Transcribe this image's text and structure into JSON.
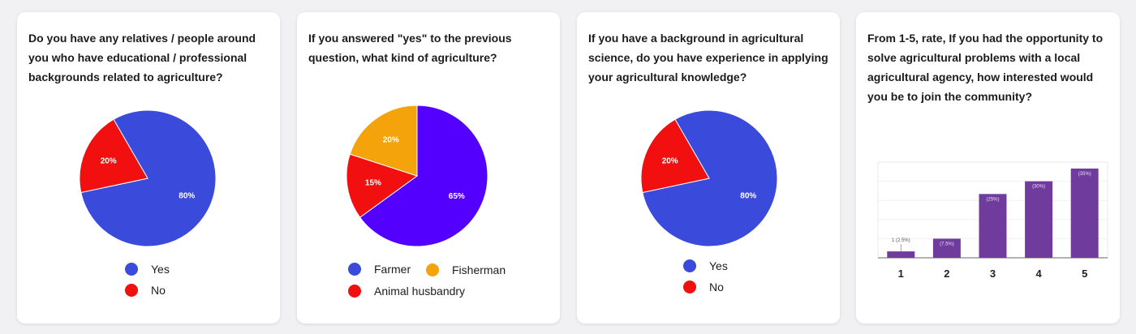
{
  "colors": {
    "blue": "#3a4bdc",
    "red": "#f10f0f",
    "purple": "#5300ff",
    "orange": "#f4a30a",
    "bar": "#6f3c9e"
  },
  "chart_data": [
    {
      "type": "pie",
      "title": "Do you have any relatives / people around you who have educational / professional backgrounds related to agriculture?",
      "labels": [
        "Yes",
        "No"
      ],
      "values": [
        80,
        20
      ],
      "value_labels": [
        "80%",
        "20%"
      ],
      "colors": [
        "#3a4bdc",
        "#f10f0f"
      ],
      "legend": [
        {
          "label": "Yes",
          "color": "#3a4bdc"
        },
        {
          "label": "No",
          "color": "#f10f0f"
        }
      ]
    },
    {
      "type": "pie",
      "title": "If you answered \"yes\" to the previous question, what kind of agriculture?",
      "labels": [
        "Farmer",
        "Animal husbandry",
        "Fisherman"
      ],
      "values": [
        65,
        15,
        20
      ],
      "value_labels": [
        "65%",
        "15%",
        "20%"
      ],
      "colors": [
        "#5300ff",
        "#f10f0f",
        "#f4a30a"
      ],
      "legend": [
        {
          "label": "Farmer",
          "color": "#3a4bdc"
        },
        {
          "label": "Fisherman",
          "color": "#f4a30a"
        },
        {
          "label": "Animal husbandry",
          "color": "#f10f0f"
        }
      ]
    },
    {
      "type": "pie",
      "title": "If you have a background in agricultural science, do you have experience in applying your agricultural knowledge?",
      "labels": [
        "Yes",
        "No"
      ],
      "values": [
        80,
        20
      ],
      "value_labels": [
        "80%",
        "20%"
      ],
      "colors": [
        "#3a4bdc",
        "#f10f0f"
      ],
      "legend": [
        {
          "label": "Yes",
          "color": "#3a4bdc"
        },
        {
          "label": "No",
          "color": "#f10f0f"
        }
      ]
    },
    {
      "type": "bar",
      "title": "From 1-5, rate, If you had the opportunity to solve agricultural problems with a local agricultural agency, how interested would you be to join the community?",
      "categories": [
        "1",
        "2",
        "3",
        "4",
        "5"
      ],
      "values": [
        2.5,
        7.5,
        25,
        30,
        35
      ],
      "value_labels": [
        "1 (2.5%)",
        "(7.5%)",
        "(25%)",
        "(30%)",
        "(35%)"
      ],
      "ylim": [
        0,
        37.5
      ],
      "color": "#6f3c9e",
      "grid": true
    }
  ]
}
